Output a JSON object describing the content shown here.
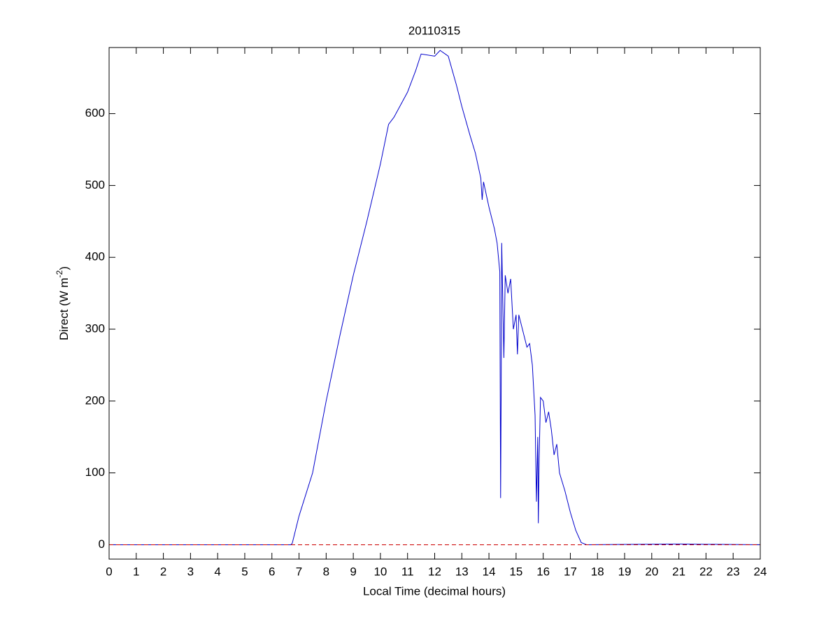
{
  "chart_data": {
    "type": "line",
    "title": "20110315",
    "xlabel": "Local Time (decimal hours)",
    "ylabel": [
      "Direct (W m",
      "-2",
      ")"
    ],
    "xlim": [
      0,
      24
    ],
    "xticks": [
      0,
      1,
      2,
      3,
      4,
      5,
      6,
      7,
      8,
      9,
      10,
      11,
      12,
      13,
      14,
      15,
      16,
      17,
      18,
      19,
      20,
      21,
      22,
      23,
      24
    ],
    "ylim": [
      -20,
      692
    ],
    "yticks": [
      0,
      100,
      200,
      300,
      400,
      500,
      600
    ],
    "series": [
      {
        "color": "#0000cc",
        "linestyle": "solid",
        "x": [
          0,
          3.3,
          6.7,
          6.75,
          7.0,
          7.5,
          8.0,
          8.5,
          9.0,
          9.5,
          10.0,
          10.3,
          10.5,
          11.0,
          11.3,
          11.5,
          12.0,
          12.2,
          12.5,
          12.8,
          13.0,
          13.3,
          13.5,
          13.7,
          13.75,
          13.8,
          14.0,
          14.2,
          14.3,
          14.4,
          14.43,
          14.45,
          14.47,
          14.55,
          14.6,
          14.7,
          14.8,
          14.9,
          15.0,
          15.05,
          15.1,
          15.3,
          15.4,
          15.5,
          15.6,
          15.7,
          15.75,
          15.8,
          15.82,
          15.85,
          15.9,
          16.0,
          16.1,
          16.2,
          16.3,
          16.4,
          16.5,
          16.6,
          16.8,
          17.0,
          17.2,
          17.4,
          17.6,
          21.0,
          24
        ],
        "values": [
          0,
          0,
          0,
          2,
          40,
          100,
          200,
          290,
          375,
          450,
          530,
          585,
          595,
          630,
          660,
          683,
          680,
          688,
          680,
          640,
          610,
          570,
          545,
          510,
          480,
          505,
          470,
          440,
          420,
          380,
          65,
          210,
          420,
          260,
          375,
          350,
          370,
          300,
          320,
          265,
          320,
          290,
          275,
          280,
          250,
          180,
          60,
          150,
          30,
          120,
          205,
          200,
          170,
          185,
          160,
          125,
          140,
          100,
          75,
          45,
          20,
          3,
          0,
          1,
          0
        ]
      },
      {
        "color": "#cc0000",
        "linestyle": "dashed",
        "x": [
          0,
          24
        ],
        "values": [
          0,
          0
        ]
      }
    ]
  }
}
